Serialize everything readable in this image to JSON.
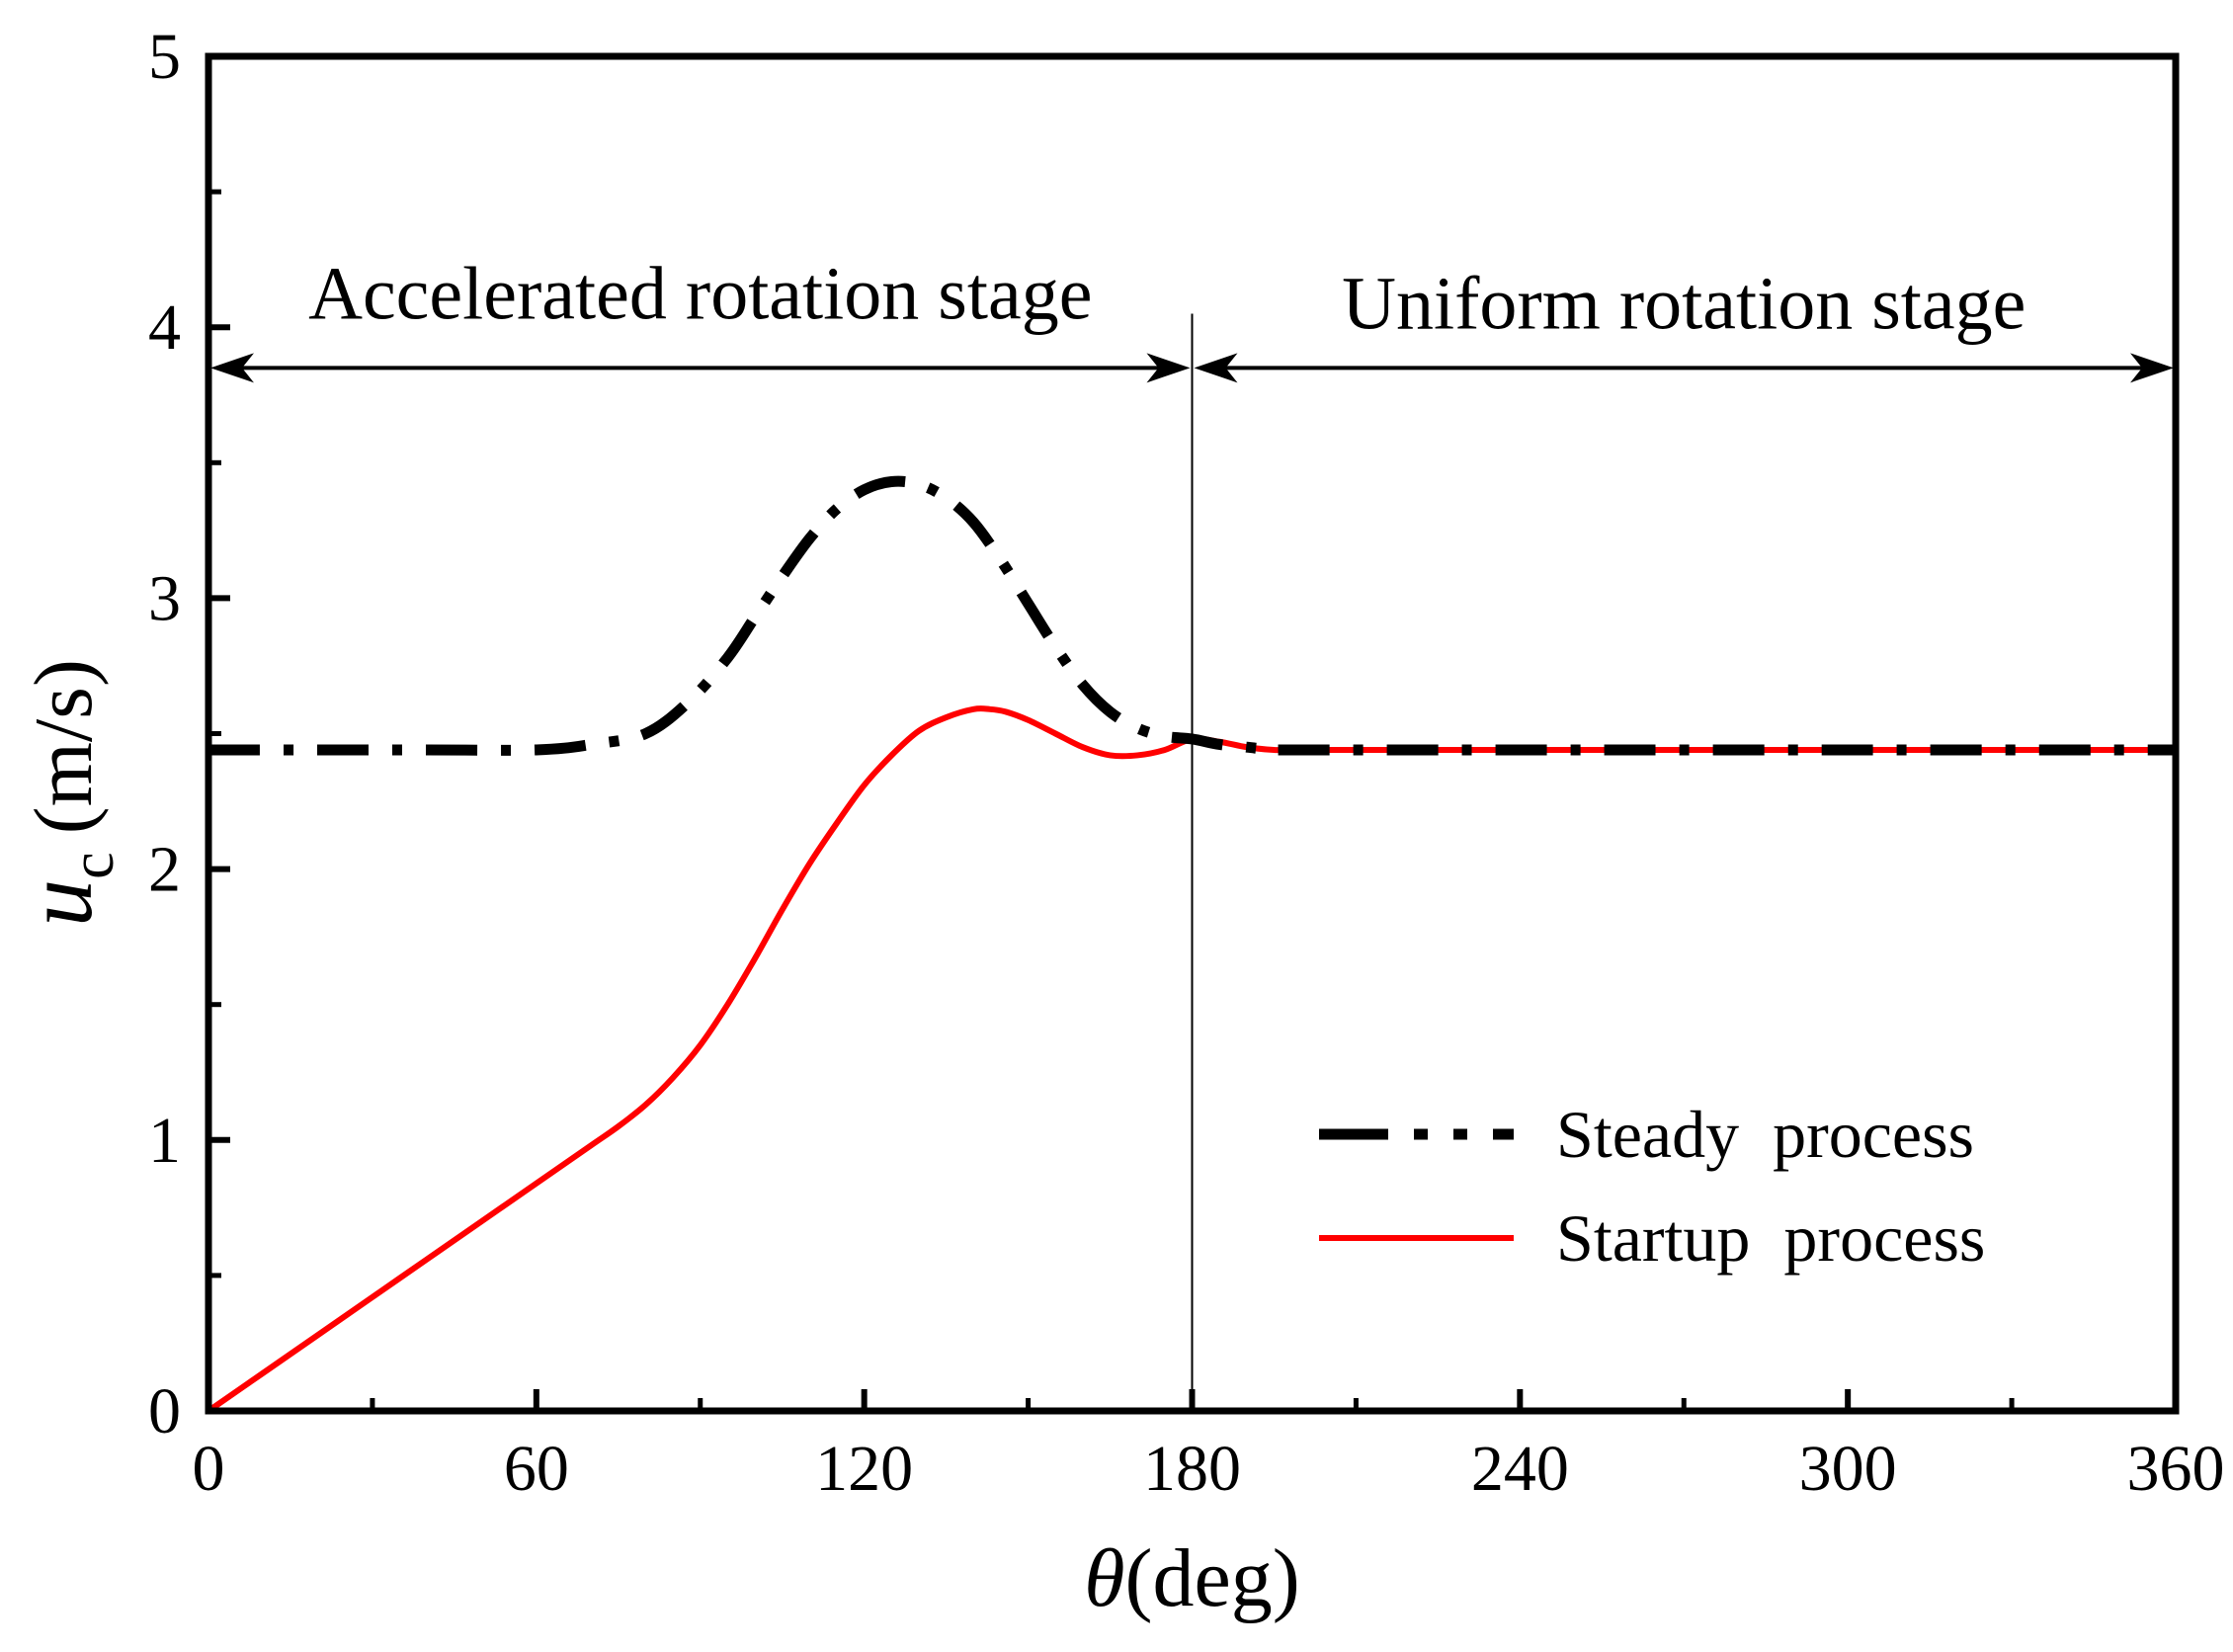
{
  "chart_data": {
    "type": "line",
    "xlabel": {
      "symbol": "θ",
      "unit": "(deg)"
    },
    "ylabel": {
      "symbol": "u",
      "subscript": "c",
      "unit": "(m/s)"
    },
    "xlim": [
      0,
      360
    ],
    "ylim": [
      0,
      5
    ],
    "xticks": [
      "0",
      "60",
      "120",
      "180",
      "240",
      "300",
      "360"
    ],
    "yticks": [
      "0",
      "1",
      "2",
      "3",
      "4",
      "5"
    ],
    "x_minor_step": 30,
    "y_minor_step": 0.5,
    "grid": false,
    "legend_position": "bottom-right",
    "annotations": {
      "stage1": {
        "label": "Accelerated rotation stage",
        "x_start": 0,
        "x_end": 180,
        "y": 3.85
      },
      "stage2": {
        "label": "Uniform rotation stage",
        "x_start": 180,
        "x_end": 360,
        "y": 3.85
      },
      "divider_x": 180
    },
    "series": [
      {
        "name": "Steady  process",
        "color": "#000000",
        "style": "dash-dot",
        "x": [
          0,
          20,
          40,
          60,
          70,
          80,
          88,
          95,
          100,
          105,
          110,
          115,
          120,
          125,
          130,
          135,
          140,
          145,
          150,
          155,
          160,
          165,
          170,
          175,
          180,
          185,
          190,
          195,
          200,
          240,
          300,
          360
        ],
        "y": [
          2.44,
          2.44,
          2.44,
          2.44,
          2.46,
          2.5,
          2.62,
          2.78,
          2.93,
          3.08,
          3.22,
          3.33,
          3.4,
          3.43,
          3.42,
          3.37,
          3.28,
          3.14,
          2.98,
          2.82,
          2.68,
          2.58,
          2.52,
          2.49,
          2.48,
          2.46,
          2.45,
          2.44,
          2.44,
          2.44,
          2.44,
          2.44
        ]
      },
      {
        "name": "Startup  process",
        "color": "#ff0000",
        "style": "solid",
        "x": [
          0,
          10,
          20,
          30,
          40,
          50,
          60,
          70,
          75,
          80,
          85,
          90,
          95,
          100,
          105,
          110,
          115,
          120,
          125,
          130,
          135,
          140,
          143,
          146,
          150,
          155,
          160,
          165,
          170,
          175,
          180,
          185,
          190,
          195,
          200,
          240,
          300,
          360
        ],
        "y": [
          0,
          0.14,
          0.28,
          0.42,
          0.56,
          0.7,
          0.84,
          0.98,
          1.05,
          1.13,
          1.23,
          1.35,
          1.5,
          1.67,
          1.85,
          2.02,
          2.17,
          2.31,
          2.42,
          2.51,
          2.56,
          2.59,
          2.59,
          2.58,
          2.55,
          2.5,
          2.45,
          2.42,
          2.42,
          2.44,
          2.48,
          2.47,
          2.45,
          2.44,
          2.44,
          2.44,
          2.44,
          2.44
        ]
      }
    ]
  }
}
